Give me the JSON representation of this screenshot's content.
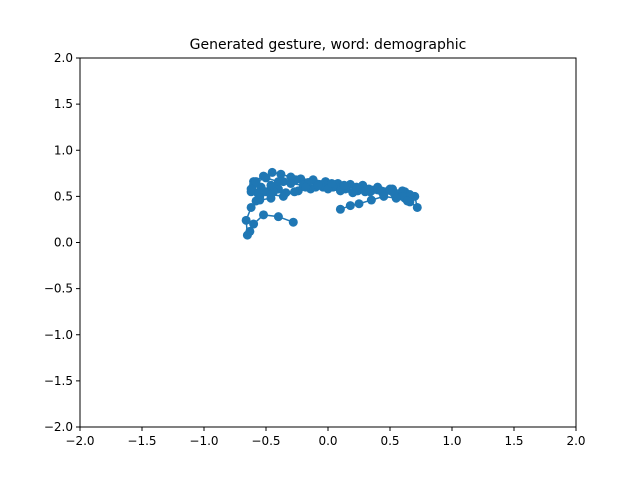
{
  "chart_data": {
    "type": "line",
    "title": "Generated gesture, word: demographic",
    "xlabel": "",
    "ylabel": "",
    "xlim": [
      -2.0,
      2.0
    ],
    "ylim": [
      -2.0,
      2.0
    ],
    "xticks": [
      "−2.0",
      "−1.5",
      "−1.0",
      "−0.5",
      "0.0",
      "0.5",
      "1.0",
      "1.5",
      "2.0"
    ],
    "yticks": [
      "−2.0",
      "−1.5",
      "−1.0",
      "−0.5",
      "0.0",
      "0.5",
      "1.0",
      "1.5",
      "2.0"
    ],
    "xtick_values": [
      -2.0,
      -1.5,
      -1.0,
      -0.5,
      0.0,
      0.5,
      1.0,
      1.5,
      2.0
    ],
    "ytick_values": [
      -2.0,
      -1.5,
      -1.0,
      -0.5,
      0.0,
      0.5,
      1.0,
      1.5,
      2.0
    ],
    "grid": false,
    "marker": "circle",
    "series_color": "#1f77b4",
    "series": [
      {
        "x": [
          -0.28,
          -0.4,
          -0.52,
          -0.6,
          -0.63,
          -0.65,
          -0.66,
          -0.62,
          -0.58,
          -0.55,
          -0.5,
          -0.44,
          -0.4,
          -0.46,
          -0.55,
          -0.62,
          -0.6,
          -0.52,
          -0.45,
          -0.38,
          -0.3,
          -0.22,
          -0.12,
          -0.02,
          0.08,
          0.18,
          0.28,
          0.4,
          0.52,
          0.62,
          0.7,
          0.72,
          0.66,
          0.56,
          0.45,
          0.35,
          0.25,
          0.15,
          0.06,
          -0.04,
          -0.14,
          -0.24,
          -0.34,
          -0.44,
          -0.54,
          -0.6,
          -0.56,
          -0.46,
          -0.36,
          -0.26,
          -0.16,
          -0.06,
          0.04,
          0.14,
          0.24,
          0.34,
          0.44,
          0.54,
          0.62,
          0.66,
          0.6,
          0.5,
          0.4,
          0.3,
          0.2,
          0.1,
          0.0,
          -0.1,
          -0.2,
          -0.3,
          -0.4,
          -0.5,
          -0.58,
          -0.62,
          -0.56,
          -0.46,
          -0.36,
          -0.27,
          -0.18,
          -0.08,
          0.03,
          0.13,
          0.23,
          0.33,
          0.43,
          0.53,
          0.6,
          0.64,
          0.55,
          0.45,
          0.35,
          0.25,
          0.18,
          0.1
        ],
        "y": [
          0.22,
          0.28,
          0.3,
          0.2,
          0.12,
          0.08,
          0.24,
          0.38,
          0.45,
          0.5,
          0.55,
          0.6,
          0.58,
          0.48,
          0.46,
          0.55,
          0.66,
          0.72,
          0.76,
          0.74,
          0.71,
          0.69,
          0.68,
          0.66,
          0.64,
          0.63,
          0.62,
          0.6,
          0.58,
          0.55,
          0.5,
          0.38,
          0.44,
          0.5,
          0.54,
          0.56,
          0.58,
          0.6,
          0.62,
          0.6,
          0.58,
          0.56,
          0.54,
          0.55,
          0.6,
          0.63,
          0.52,
          0.62,
          0.66,
          0.68,
          0.65,
          0.62,
          0.6,
          0.58,
          0.56,
          0.55,
          0.54,
          0.52,
          0.48,
          0.52,
          0.56,
          0.58,
          0.57,
          0.55,
          0.54,
          0.56,
          0.58,
          0.6,
          0.62,
          0.64,
          0.66,
          0.7,
          0.66,
          0.58,
          0.54,
          0.52,
          0.5,
          0.55,
          0.6,
          0.62,
          0.64,
          0.62,
          0.6,
          0.58,
          0.56,
          0.54,
          0.5,
          0.45,
          0.48,
          0.5,
          0.46,
          0.42,
          0.4,
          0.36
        ]
      }
    ]
  }
}
